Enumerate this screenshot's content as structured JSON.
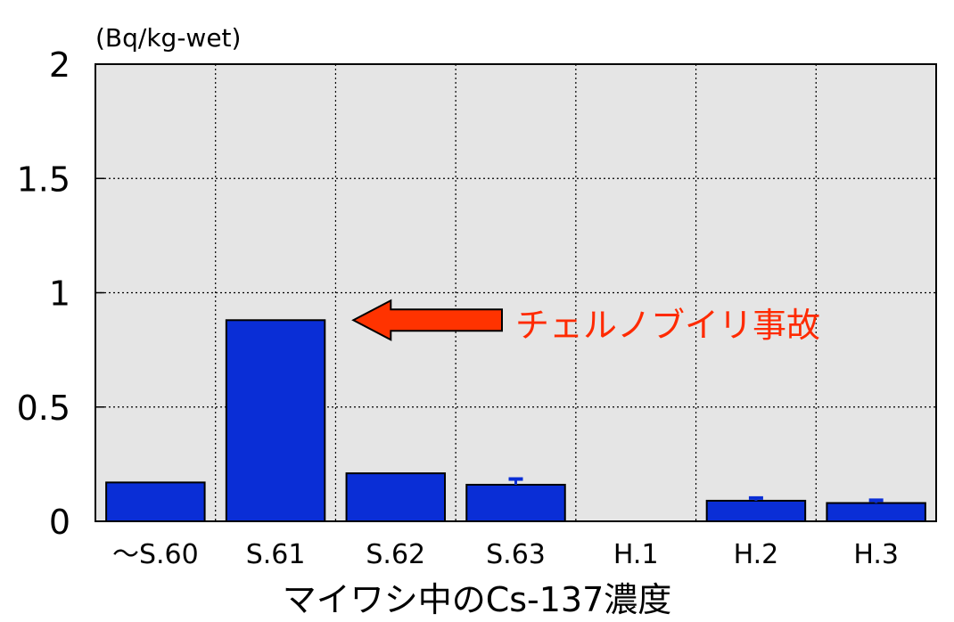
{
  "chart_data": {
    "type": "bar",
    "unit_label": "(Bq/kg-wet)",
    "xlabel": "マイワシ中のCs-137濃度",
    "ylabel": "",
    "categories": [
      "〜S.60",
      "S.61",
      "S.62",
      "S.63",
      "H.1",
      "H.2",
      "H.3"
    ],
    "values": [
      0.17,
      0.88,
      0.21,
      0.16,
      0,
      0.09,
      0.08
    ],
    "error_upper": [
      null,
      null,
      null,
      0.025,
      null,
      0.012,
      0.012
    ],
    "ylim": [
      0,
      2
    ],
    "yticks": [
      0,
      0.5,
      1,
      1.5,
      2
    ],
    "ytick_labels": [
      "0",
      "0.5",
      "1",
      "1.5",
      "2"
    ],
    "grid": true,
    "annotation": {
      "text": "チェルノブイリ事故",
      "target_category": "S.61"
    },
    "colors": {
      "bar": "#0a2ed6",
      "plot_bg": "#e5e5e5",
      "annotation": "#ff2a00",
      "arrow_fill": "#ff3300"
    }
  }
}
